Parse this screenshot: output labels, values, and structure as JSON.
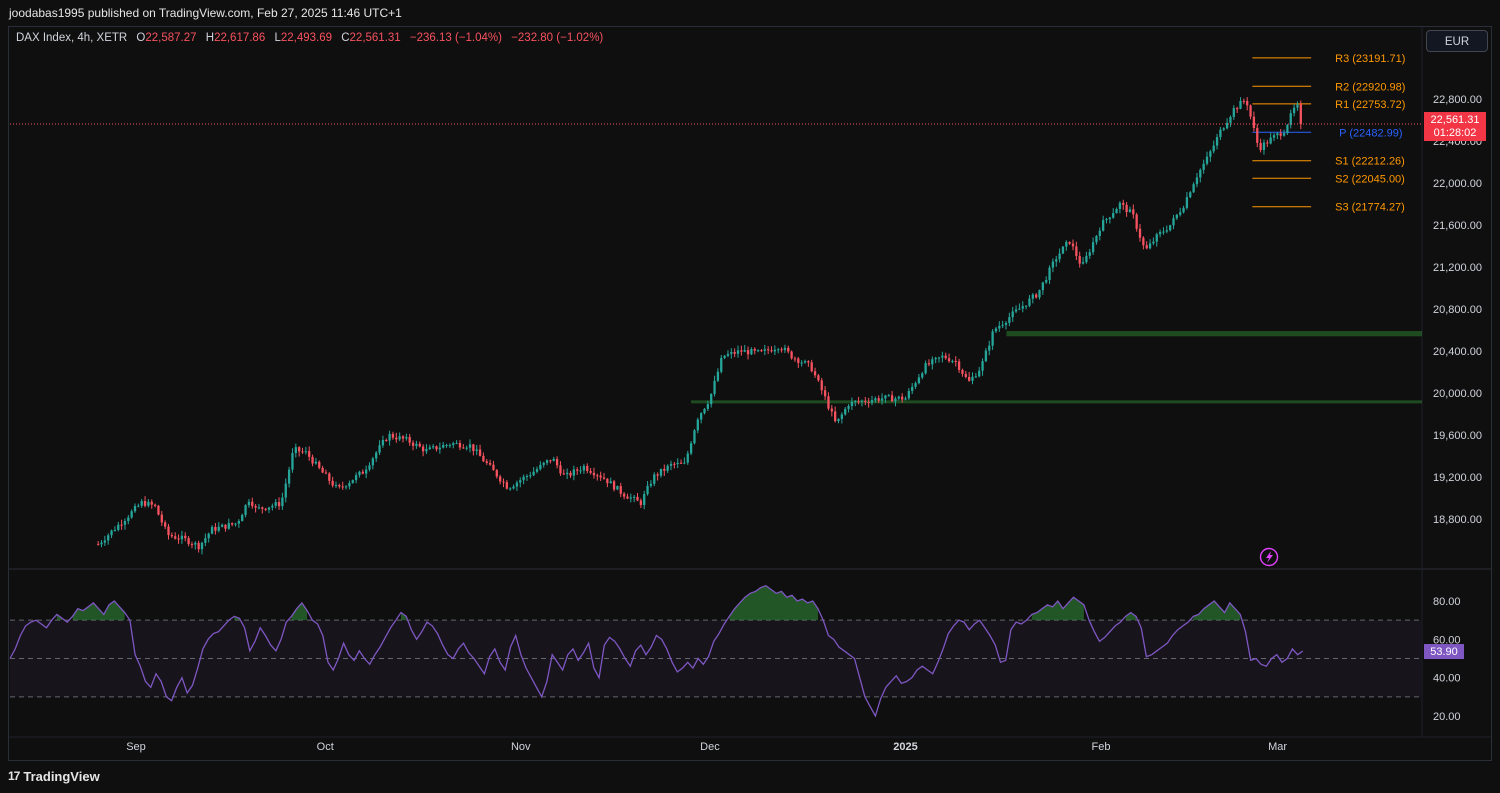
{
  "header": {
    "published": "joodabas1995 published on TradingView.com, Feb 27, 2025 11:46 UTC+1"
  },
  "legend": {
    "symbol": "DAX Index, 4h, XETR",
    "open_label": "O",
    "open": "22,587.27",
    "high_label": "H",
    "high": "22,617.86",
    "low_label": "L",
    "low": "22,493.69",
    "close_label": "C",
    "close": "22,561.31",
    "change": "−236.13 (−1.04%)",
    "change2": "−232.80 (−1.02%)"
  },
  "currency_button": "EUR",
  "price_tag": {
    "price": "22,561.31",
    "countdown": "01:28:02"
  },
  "rsi_tag": "53.90",
  "footer": {
    "brand": "TradingView",
    "logo_glyph": "17"
  },
  "colors": {
    "up": "#26a69a",
    "down": "#f7525f",
    "rsi": "#7e57c2",
    "pivot_res": "#ff9800",
    "pivot_p": "#2962ff",
    "zone": "#2e7d32",
    "accent": "#e040fb"
  },
  "chart_data": [
    {
      "type": "candlestick",
      "title": "DAX Index, 4h, XETR",
      "x_tick_labels": [
        "Sep",
        "Oct",
        "Nov",
        "Dec",
        "2025",
        "Feb",
        "Mar"
      ],
      "y_tick_labels": [
        "18,800.00",
        "19,200.00",
        "19,600.00",
        "20,000.00",
        "20,400.00",
        "20,800.00",
        "21,200.00",
        "21,600.00",
        "22,000.00",
        "22,400.00",
        "22,800.00"
      ],
      "ylim": [
        18460,
        23460
      ],
      "last_price": 22561.31,
      "path_points": [
        [
          "Aug 26",
          18560
        ],
        [
          "Sep 2",
          18960
        ],
        [
          "Sep 4",
          18920
        ],
        [
          "Sep 6",
          18650
        ],
        [
          "Sep 9",
          18600
        ],
        [
          "Sep 11",
          18540
        ],
        [
          "Sep 13",
          18700
        ],
        [
          "Sep 17",
          18760
        ],
        [
          "Sep 19",
          19000
        ],
        [
          "Sep 20",
          18890
        ],
        [
          "Sep 24",
          18950
        ],
        [
          "Sep 26",
          19460
        ],
        [
          "Sep 28",
          19430
        ],
        [
          "Sep 30",
          19280
        ],
        [
          "Oct 3",
          19080
        ],
        [
          "Oct 7",
          19250
        ],
        [
          "Oct 11",
          19600
        ],
        [
          "Oct 14",
          19550
        ],
        [
          "Oct 17",
          19450
        ],
        [
          "Oct 21",
          19520
        ],
        [
          "Oct 24",
          19500
        ],
        [
          "Oct 27",
          19300
        ],
        [
          "Oct 30",
          19100
        ],
        [
          "Nov 3",
          19250
        ],
        [
          "Nov 6",
          19380
        ],
        [
          "Nov 8",
          19200
        ],
        [
          "Nov 11",
          19300
        ],
        [
          "Nov 14",
          19200
        ],
        [
          "Nov 17",
          19050
        ],
        [
          "Nov 20",
          18950
        ],
        [
          "Nov 22",
          19200
        ],
        [
          "Nov 25",
          19320
        ],
        [
          "Nov 27",
          19320
        ],
        [
          "Nov 29",
          19760
        ],
        [
          "Dec 1",
          19950
        ],
        [
          "Dec 3",
          20350
        ],
        [
          "Dec 6",
          20400
        ],
        [
          "Dec 9",
          20380
        ],
        [
          "Dec 12",
          20450
        ],
        [
          "Dec 14",
          20350
        ],
        [
          "Dec 17",
          20250
        ],
        [
          "Dec 19",
          19990
        ],
        [
          "Dec 21",
          19700
        ],
        [
          "Dec 23",
          19900
        ],
        [
          "Dec 28",
          19950
        ],
        [
          "Jan 1",
          19950
        ],
        [
          "Jan 4",
          20250
        ],
        [
          "Jan 7",
          20350
        ],
        [
          "Jan 9",
          20300
        ],
        [
          "Jan 11",
          20100
        ],
        [
          "Jan 13",
          20250
        ],
        [
          "Jan 15",
          20600
        ],
        [
          "Jan 17",
          20700
        ],
        [
          "Jan 19",
          20800
        ],
        [
          "Jan 22",
          20950
        ],
        [
          "Jan 25",
          21300
        ],
        [
          "Jan 27",
          21450
        ],
        [
          "Jan 29",
          21200
        ],
        [
          "Feb 1",
          21600
        ],
        [
          "Feb 4",
          21800
        ],
        [
          "Feb 6",
          21700
        ],
        [
          "Feb 8",
          21350
        ],
        [
          "Feb 10",
          21500
        ],
        [
          "Feb 12",
          21600
        ],
        [
          "Feb 14",
          21780
        ],
        [
          "Feb 16",
          22050
        ],
        [
          "Feb 18",
          22250
        ],
        [
          "Feb 20",
          22500
        ],
        [
          "Feb 22",
          22700
        ],
        [
          "Feb 24",
          22800
        ],
        [
          "Feb 26",
          22330
        ],
        [
          "Feb 28",
          22420
        ],
        [
          "Mar 2",
          22500
        ],
        [
          "Mar 4",
          22750
        ],
        [
          "Mar 5",
          22561
        ]
      ],
      "pivot_levels": [
        {
          "name": "R3",
          "value": 23191.71,
          "label": "R3 (23191.71)"
        },
        {
          "name": "R2",
          "value": 22920.98,
          "label": "R2 (22920.98)"
        },
        {
          "name": "R1",
          "value": 22753.72,
          "label": "R1 (22753.72)"
        },
        {
          "name": "P",
          "value": 22482.99,
          "label": "P (22482.99)"
        },
        {
          "name": "S1",
          "value": 22212.26,
          "label": "S1 (22212.26)"
        },
        {
          "name": "S2",
          "value": 22045.0,
          "label": "S2 (22045.00)"
        },
        {
          "name": "S3",
          "value": 21774.27,
          "label": "S3 (21774.27)"
        }
      ],
      "zones": [
        {
          "from": "Jan 17",
          "to": "end",
          "low": 20540,
          "high": 20590
        },
        {
          "from": "Nov 28",
          "to": "end",
          "low": 19910,
          "high": 19930
        }
      ]
    },
    {
      "type": "line",
      "series_label": "RSI",
      "y_tick_labels": [
        "20.00",
        "40.00",
        "60.00",
        "80.00"
      ],
      "ylim": [
        13,
        90
      ],
      "bands": [
        30,
        50,
        70
      ],
      "last_value": 53.9,
      "values": [
        50,
        55,
        62,
        67,
        69,
        70,
        68,
        66,
        70,
        73,
        71,
        69,
        72,
        76,
        75,
        77,
        79,
        76,
        73,
        78,
        80,
        77,
        74,
        70,
        52,
        46,
        38,
        35,
        42,
        38,
        30,
        28,
        35,
        40,
        32,
        36,
        45,
        55,
        60,
        63,
        64,
        67,
        70,
        72,
        71,
        66,
        54,
        59,
        66,
        62,
        57,
        54,
        60,
        69,
        72,
        76,
        79,
        75,
        70,
        68,
        62,
        48,
        44,
        50,
        58,
        52,
        49,
        54,
        50,
        47,
        52,
        56,
        61,
        66,
        70,
        74,
        72,
        65,
        60,
        64,
        69,
        67,
        63,
        57,
        52,
        50,
        55,
        58,
        53,
        50,
        46,
        42,
        51,
        55,
        48,
        44,
        56,
        62,
        52,
        45,
        40,
        35,
        30,
        38,
        52,
        48,
        44,
        52,
        55,
        49,
        53,
        58,
        45,
        40,
        57,
        61,
        59,
        55,
        50,
        46,
        54,
        57,
        52,
        56,
        62,
        60,
        55,
        48,
        43,
        45,
        48,
        45,
        50,
        47,
        51,
        59,
        63,
        68,
        72,
        76,
        79,
        82,
        84,
        85,
        87,
        88,
        86,
        84,
        85,
        82,
        83,
        80,
        81,
        79,
        80,
        76,
        70,
        62,
        60,
        56,
        54,
        52,
        50,
        40,
        30,
        25,
        20,
        29,
        35,
        38,
        41,
        37,
        38,
        40,
        44,
        46,
        44,
        42,
        48,
        55,
        63,
        67,
        70,
        69,
        65,
        68,
        70,
        66,
        62,
        57,
        48,
        49,
        65,
        69,
        68,
        70,
        73,
        74,
        76,
        78,
        77,
        80,
        76,
        79,
        82,
        80,
        78,
        70,
        64,
        59,
        61,
        64,
        67,
        69,
        72,
        74,
        72,
        66,
        51,
        52,
        54,
        56,
        58,
        62,
        65,
        67,
        69,
        72,
        73,
        76,
        78,
        80,
        77,
        74,
        79,
        76,
        73,
        64,
        49,
        50,
        47,
        46,
        50,
        52,
        48,
        50,
        55,
        52,
        53.9
      ]
    }
  ]
}
